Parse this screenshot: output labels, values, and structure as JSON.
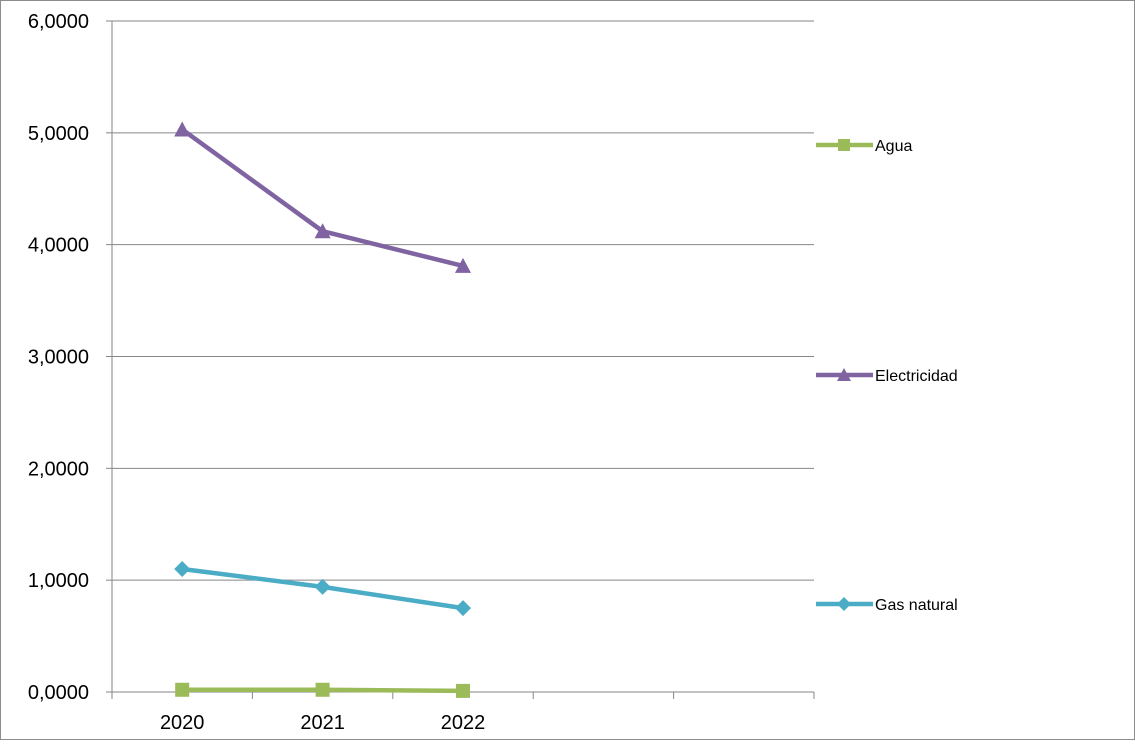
{
  "chart_data": {
    "type": "line",
    "title": "",
    "xlabel": "",
    "ylabel": "",
    "categories": [
      "2020",
      "2021",
      "2022"
    ],
    "x_slots": 5,
    "ylim": [
      0,
      6
    ],
    "yticks": [
      0,
      1,
      2,
      3,
      4,
      5,
      6
    ],
    "ytick_labels": [
      "0,0000",
      "1,0000",
      "2,0000",
      "3,0000",
      "4,0000",
      "5,0000",
      "6,0000"
    ],
    "grid": true,
    "legend_position": "right",
    "series": [
      {
        "name": "Agua",
        "values": [
          0.02,
          0.02,
          0.01
        ],
        "color": "#9bbb59",
        "marker": "square"
      },
      {
        "name": "Electricidad",
        "values": [
          5.03,
          4.12,
          3.81
        ],
        "color": "#8064a2",
        "marker": "triangle"
      },
      {
        "name": "Gas natural",
        "values": [
          1.1,
          0.94,
          0.75
        ],
        "color": "#4bacc6",
        "marker": "diamond"
      }
    ]
  }
}
